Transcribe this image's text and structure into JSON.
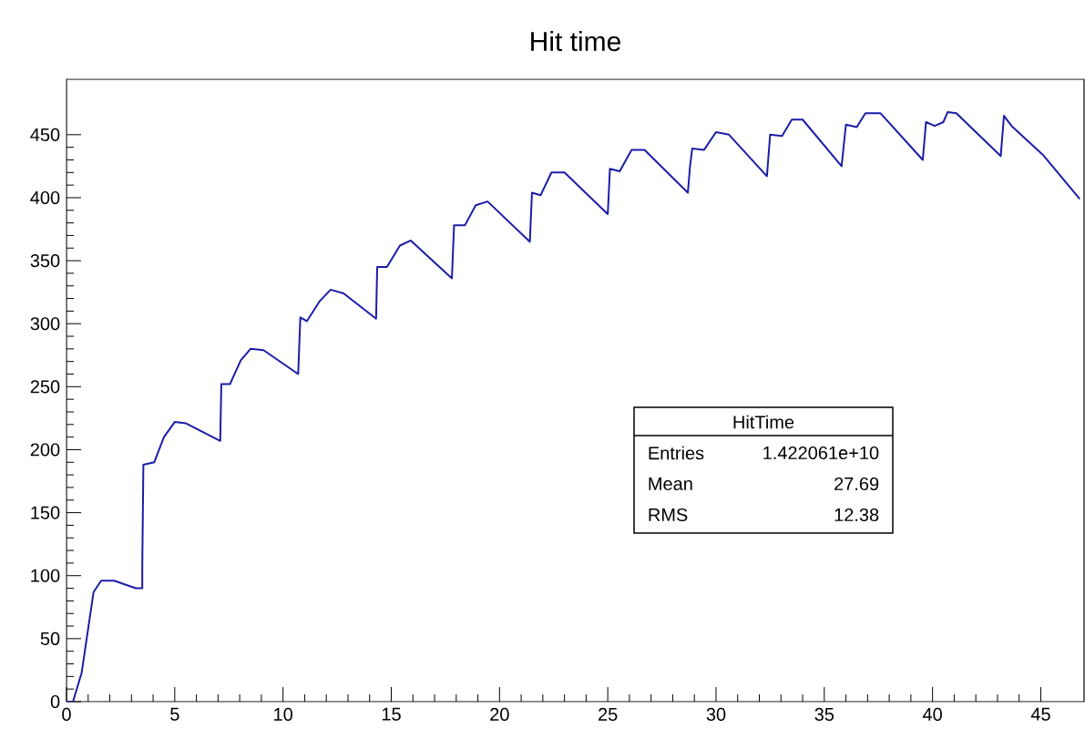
{
  "chart_data": {
    "type": "line",
    "title": "Hit time",
    "color": "#1c1ca8",
    "x": [
      0,
      0.3,
      0.7,
      1.0,
      1.25,
      1.6,
      2.2,
      3.2,
      3.5,
      3.5,
      3.55,
      4.05,
      4.5,
      5.0,
      5.5,
      7.1,
      7.15,
      7.55,
      8.05,
      8.5,
      9.1,
      10.7,
      10.8,
      11.1,
      11.7,
      12.2,
      12.8,
      14.3,
      14.35,
      14.8,
      15.4,
      15.9,
      17.8,
      17.9,
      18.4,
      18.9,
      19.45,
      21.4,
      21.5,
      21.9,
      22.4,
      23.0,
      25.0,
      25.1,
      25.55,
      26.1,
      26.7,
      28.7,
      28.8,
      28.9,
      29.45,
      30.0,
      30.6,
      32.35,
      32.5,
      33.05,
      33.5,
      34.0,
      35.8,
      36.0,
      36.5,
      36.9,
      37.6,
      39.55,
      39.7,
      40.1,
      40.5,
      40.7,
      41.1,
      43.15,
      43.3,
      43.65,
      45.1,
      46.8
    ],
    "values": [
      0,
      0,
      23,
      58,
      87,
      96,
      96,
      90,
      90,
      108,
      188,
      190,
      210,
      222,
      221,
      207,
      252,
      252,
      271,
      280,
      279,
      260,
      305,
      302,
      318,
      327,
      324,
      304,
      345,
      345,
      362,
      366,
      336,
      378,
      378,
      394,
      397,
      365,
      404,
      402,
      420,
      420,
      387,
      423,
      421,
      438,
      438,
      404,
      425,
      439,
      438,
      452,
      450,
      417,
      450,
      449,
      462,
      462,
      425,
      458,
      456,
      467,
      467,
      430,
      460,
      457,
      460,
      468,
      467,
      433,
      465,
      457,
      434,
      399
    ],
    "xlim": [
      0,
      47
    ],
    "ylim": [
      0,
      494
    ],
    "xticks": [
      0,
      5,
      10,
      15,
      20,
      25,
      30,
      35,
      40,
      45
    ],
    "yticks": [
      0,
      50,
      100,
      150,
      200,
      250,
      300,
      350,
      400,
      450
    ],
    "grid": false,
    "annotations": [
      "HitTime",
      "Entries",
      "1.422061e+10",
      "Mean",
      "27.69",
      "RMS",
      "12.38"
    ]
  }
}
